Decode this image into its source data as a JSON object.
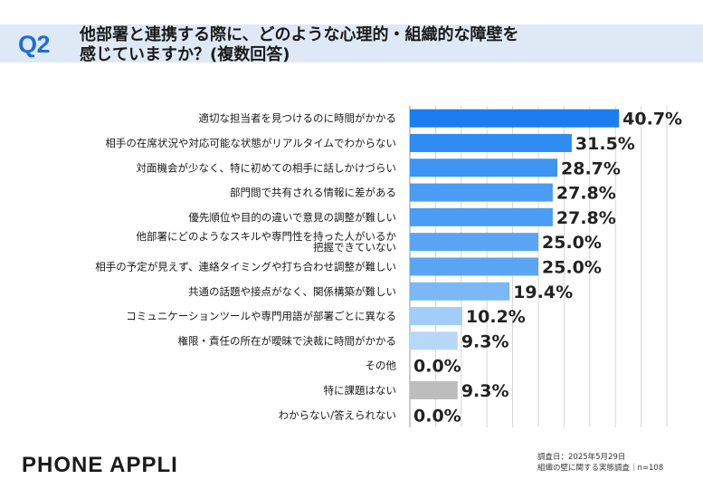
{
  "header": {
    "badge": "Q2",
    "question": "他部署と連携する際に、どのような心理的・組織的な障壁を\n感じていますか？(複数回答)"
  },
  "chart_data": {
    "type": "bar",
    "orientation": "horizontal",
    "categories": [
      "適切な担当者を見つけるのに時間がかかる",
      "相手の在席状況や対応可能な状態がリアルタイムでわからない",
      "対面機会が少なく、特に初めての相手に話しかけづらい",
      "部門間で共有される情報に差がある",
      "優先順位や目的の違いで意見の調整が難しい",
      "他部署にどのようなスキルや専門性を持った人がいるか\n把握できていない",
      "相手の予定が見えず、連絡タイミングや打ち合わせ調整が難しい",
      "共通の話題や接点がなく、関係構築が難しい",
      "コミュニケーションツールや専門用語が部署ごとに異なる",
      "権限・責任の所在が曖昧で決裁に時間がかかる",
      "その他",
      "特に課題はない",
      "わからない/答えられない"
    ],
    "values": [
      40.7,
      31.5,
      28.7,
      27.8,
      27.8,
      25.0,
      25.0,
      19.4,
      10.2,
      9.3,
      0.0,
      9.3,
      0.0
    ],
    "value_labels": [
      "40.7%",
      "31.5%",
      "28.7%",
      "27.8%",
      "27.8%",
      "25.0%",
      "25.0%",
      "19.4%",
      "10.2%",
      "9.3%",
      "0.0%",
      "9.3%",
      "0.0%"
    ],
    "bar_colors": [
      "#1a7ef0",
      "#2f8cf2",
      "#3d95f3",
      "#4a9cf4",
      "#4a9cf4",
      "#5aa6f5",
      "#5aa6f5",
      "#7ab8f7",
      "#a2cdf9",
      "#b7d8fa",
      "#c5dffb",
      "#bdbdbd",
      "#c5dffb"
    ],
    "xlim": [
      0,
      50
    ],
    "grid_step": 5,
    "unit": "%"
  },
  "footer": {
    "brand": "PHONE  APPLI",
    "survey_date": "調査日：2025年5月29日",
    "survey_name": "組織の壁に関する実態調査｜n=108"
  }
}
